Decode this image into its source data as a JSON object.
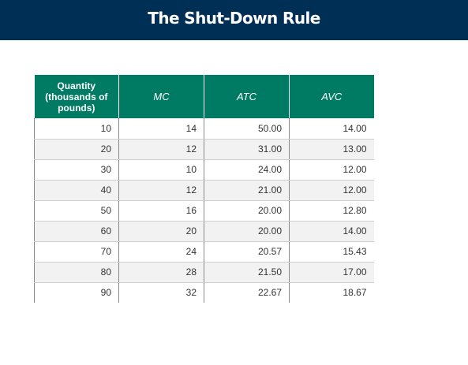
{
  "header": {
    "title": "The Shut-Down Rule"
  },
  "table": {
    "columns": [
      "Quantity (thousands of pounds)",
      "MC",
      "ATC",
      "AVC"
    ],
    "rows": [
      [
        "10",
        "14",
        "50.00",
        "14.00"
      ],
      [
        "20",
        "12",
        "31.00",
        "13.00"
      ],
      [
        "30",
        "10",
        "24.00",
        "12.00"
      ],
      [
        "40",
        "12",
        "21.00",
        "12.00"
      ],
      [
        "50",
        "16",
        "20.00",
        "12.80"
      ],
      [
        "60",
        "20",
        "20.00",
        "14.00"
      ],
      [
        "70",
        "24",
        "20.57",
        "15.43"
      ],
      [
        "80",
        "28",
        "21.50",
        "17.00"
      ],
      [
        "90",
        "32",
        "22.67",
        "18.67"
      ]
    ]
  },
  "colors": {
    "header_bg": "#002f56",
    "table_header_bg": "#007b63",
    "stripe_bg": "#f2f2f2"
  }
}
